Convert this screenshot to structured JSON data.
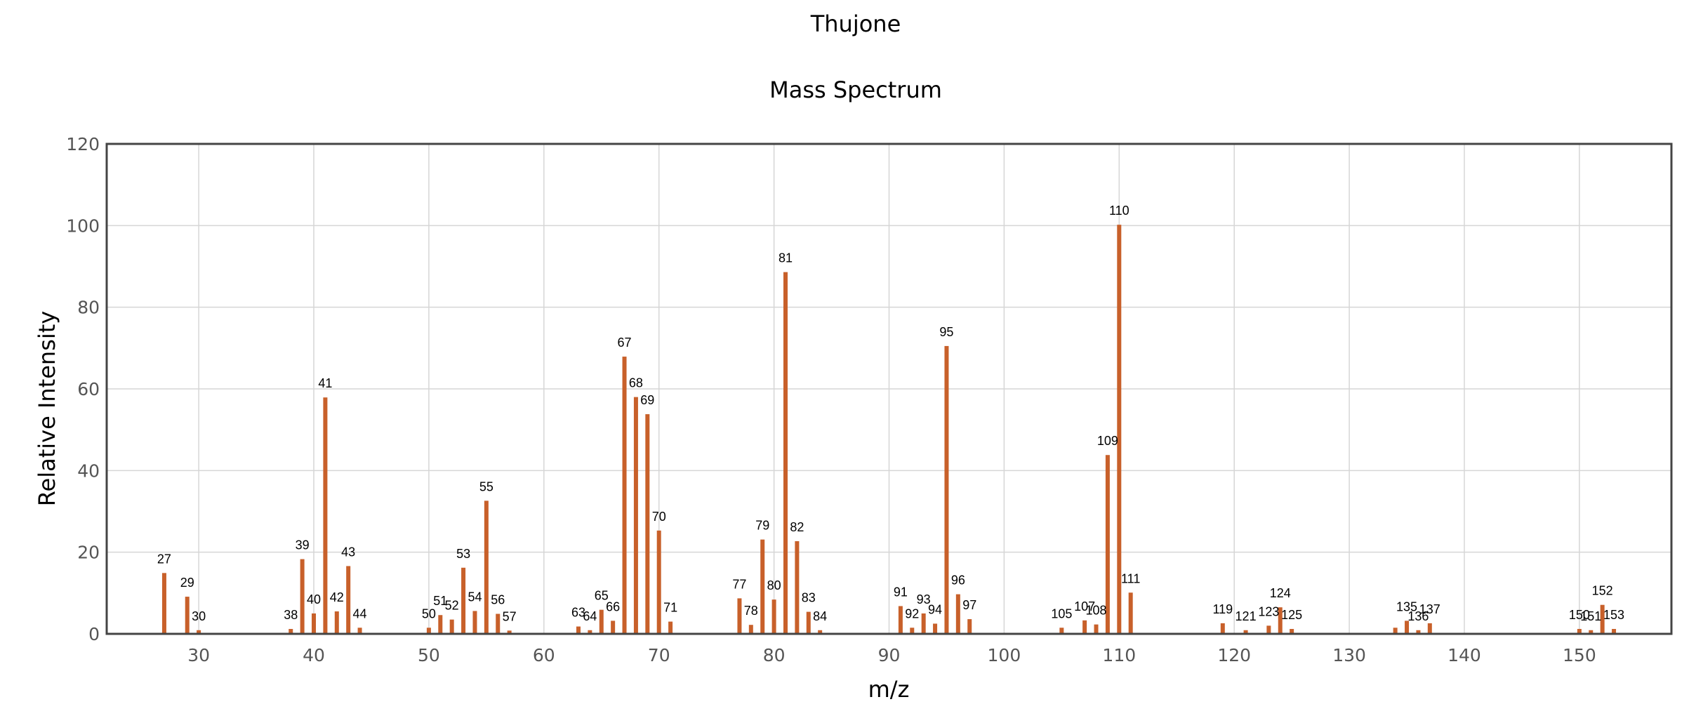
{
  "chart_data": {
    "type": "bar",
    "title": "Thujone",
    "subtitle": "Mass Spectrum",
    "xlabel": "m/z",
    "ylabel": "Relative Intensity",
    "xlim": [
      22,
      158
    ],
    "ylim": [
      0,
      120
    ],
    "xticks": [
      30,
      40,
      50,
      60,
      70,
      80,
      90,
      100,
      110,
      120,
      130,
      140,
      150
    ],
    "yticks": [
      0,
      20,
      40,
      60,
      80,
      100,
      120
    ],
    "grid": true,
    "bar_color": "#c8602a",
    "points": [
      {
        "x": 27,
        "y": 14.9,
        "label": "27"
      },
      {
        "x": 29,
        "y": 9.1,
        "label": "29"
      },
      {
        "x": 30,
        "y": 0.9,
        "label": "30"
      },
      {
        "x": 38,
        "y": 1.2,
        "label": "38"
      },
      {
        "x": 39,
        "y": 18.3,
        "label": "39"
      },
      {
        "x": 40,
        "y": 5.0,
        "label": "40"
      },
      {
        "x": 41,
        "y": 57.9,
        "label": "41"
      },
      {
        "x": 42,
        "y": 5.5,
        "label": "42"
      },
      {
        "x": 43,
        "y": 16.6,
        "label": "43"
      },
      {
        "x": 44,
        "y": 1.5,
        "label": "44"
      },
      {
        "x": 50,
        "y": 1.5,
        "label": "50"
      },
      {
        "x": 51,
        "y": 4.6,
        "label": "51"
      },
      {
        "x": 52,
        "y": 3.5,
        "label": "52"
      },
      {
        "x": 53,
        "y": 16.2,
        "label": "53"
      },
      {
        "x": 54,
        "y": 5.6,
        "label": "54"
      },
      {
        "x": 55,
        "y": 32.6,
        "label": "55"
      },
      {
        "x": 56,
        "y": 4.9,
        "label": "56"
      },
      {
        "x": 57,
        "y": 0.8,
        "label": "57"
      },
      {
        "x": 63,
        "y": 1.8,
        "label": "63"
      },
      {
        "x": 64,
        "y": 0.9,
        "label": "64"
      },
      {
        "x": 65,
        "y": 5.9,
        "label": "65"
      },
      {
        "x": 66,
        "y": 3.2,
        "label": "66"
      },
      {
        "x": 67,
        "y": 67.9,
        "label": "67"
      },
      {
        "x": 68,
        "y": 58.0,
        "label": "68"
      },
      {
        "x": 69,
        "y": 53.8,
        "label": "69"
      },
      {
        "x": 70,
        "y": 25.3,
        "label": "70"
      },
      {
        "x": 71,
        "y": 3.0,
        "label": "71"
      },
      {
        "x": 77,
        "y": 8.7,
        "label": "77"
      },
      {
        "x": 78,
        "y": 2.2,
        "label": "78"
      },
      {
        "x": 79,
        "y": 23.1,
        "label": "79"
      },
      {
        "x": 80,
        "y": 8.4,
        "label": "80"
      },
      {
        "x": 81,
        "y": 88.6,
        "label": "81"
      },
      {
        "x": 82,
        "y": 22.7,
        "label": "82"
      },
      {
        "x": 83,
        "y": 5.4,
        "label": "83"
      },
      {
        "x": 84,
        "y": 0.9,
        "label": "84"
      },
      {
        "x": 91,
        "y": 6.8,
        "label": "91"
      },
      {
        "x": 92,
        "y": 1.5,
        "label": "92"
      },
      {
        "x": 93,
        "y": 5.0,
        "label": "93"
      },
      {
        "x": 94,
        "y": 2.5,
        "label": "94"
      },
      {
        "x": 95,
        "y": 70.5,
        "label": "95"
      },
      {
        "x": 96,
        "y": 9.7,
        "label": "96"
      },
      {
        "x": 97,
        "y": 3.6,
        "label": "97"
      },
      {
        "x": 105,
        "y": 1.5,
        "label": "105"
      },
      {
        "x": 107,
        "y": 3.3,
        "label": "107"
      },
      {
        "x": 108,
        "y": 2.3,
        "label": "108"
      },
      {
        "x": 109,
        "y": 43.8,
        "label": "109"
      },
      {
        "x": 110,
        "y": 100.2,
        "label": "110"
      },
      {
        "x": 111,
        "y": 10.1,
        "label": "111"
      },
      {
        "x": 119,
        "y": 2.6,
        "label": "119"
      },
      {
        "x": 121,
        "y": 0.9,
        "label": "121"
      },
      {
        "x": 123,
        "y": 2.0,
        "label": "123"
      },
      {
        "x": 124,
        "y": 6.5,
        "label": "124"
      },
      {
        "x": 125,
        "y": 1.2,
        "label": "125"
      },
      {
        "x": 134,
        "y": 1.5,
        "label": ""
      },
      {
        "x": 135,
        "y": 3.2,
        "label": "135"
      },
      {
        "x": 136,
        "y": 0.9,
        "label": "136"
      },
      {
        "x": 137,
        "y": 2.6,
        "label": "137"
      },
      {
        "x": 150,
        "y": 1.2,
        "label": "150"
      },
      {
        "x": 151,
        "y": 0.9,
        "label": "151"
      },
      {
        "x": 152,
        "y": 7.1,
        "label": "152"
      },
      {
        "x": 153,
        "y": 1.2,
        "label": "153"
      }
    ]
  }
}
